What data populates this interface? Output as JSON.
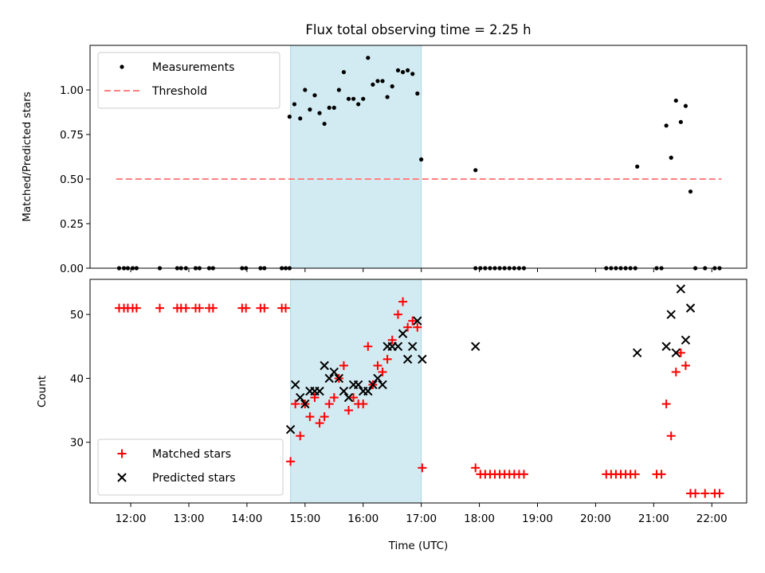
{
  "chart_data": [
    {
      "type": "scatter",
      "title": "Flux total observing time = 2.25 h",
      "xlabel": "",
      "ylabel": "Matched/Predicted stars",
      "ylim": [
        0,
        1.25
      ],
      "yticks": [
        "0.00",
        "0.25",
        "0.50",
        "0.75",
        "1.00"
      ],
      "ytick_values": [
        0,
        0.25,
        0.5,
        0.75,
        1.0
      ],
      "highlight_span": {
        "start": "14:45",
        "end": "17:00",
        "color": "#add8e6"
      },
      "legend_position": "upper-left",
      "series": [
        {
          "name": "Measurements",
          "marker": "dot",
          "color": "#000000",
          "points": [
            [
              "11:48",
              0
            ],
            [
              "11:53",
              0
            ],
            [
              "11:57",
              0
            ],
            [
              "12:02",
              0
            ],
            [
              "12:06",
              0
            ],
            [
              "12:30",
              0
            ],
            [
              "12:48",
              0
            ],
            [
              "12:52",
              0
            ],
            [
              "12:57",
              0
            ],
            [
              "13:07",
              0
            ],
            [
              "13:11",
              0
            ],
            [
              "13:21",
              0
            ],
            [
              "13:25",
              0
            ],
            [
              "13:55",
              0
            ],
            [
              "13:59",
              0
            ],
            [
              "14:14",
              0
            ],
            [
              "14:18",
              0
            ],
            [
              "14:36",
              0
            ],
            [
              "14:40",
              0
            ],
            [
              "14:44",
              0
            ],
            [
              "14:44",
              0.85
            ],
            [
              "14:49",
              0.92
            ],
            [
              "14:55",
              0.84
            ],
            [
              "15:00",
              1.0
            ],
            [
              "15:05",
              0.89
            ],
            [
              "15:10",
              0.97
            ],
            [
              "15:15",
              0.87
            ],
            [
              "15:20",
              0.81
            ],
            [
              "15:25",
              0.9
            ],
            [
              "15:30",
              0.9
            ],
            [
              "15:35",
              1.0
            ],
            [
              "15:40",
              1.1
            ],
            [
              "15:45",
              0.95
            ],
            [
              "15:50",
              0.95
            ],
            [
              "15:55",
              0.92
            ],
            [
              "16:00",
              0.95
            ],
            [
              "16:05",
              1.18
            ],
            [
              "16:10",
              1.03
            ],
            [
              "16:15",
              1.05
            ],
            [
              "16:20",
              1.05
            ],
            [
              "16:25",
              0.96
            ],
            [
              "16:30",
              1.02
            ],
            [
              "16:36",
              1.11
            ],
            [
              "16:41",
              1.1
            ],
            [
              "16:46",
              1.11
            ],
            [
              "16:51",
              1.09
            ],
            [
              "16:56",
              0.98
            ],
            [
              "17:00",
              0.61
            ],
            [
              "17:56",
              0.55
            ],
            [
              "17:56",
              0
            ],
            [
              "18:01",
              0
            ],
            [
              "18:06",
              0
            ],
            [
              "18:11",
              0
            ],
            [
              "18:16",
              0
            ],
            [
              "18:21",
              0
            ],
            [
              "18:26",
              0
            ],
            [
              "18:31",
              0
            ],
            [
              "18:36",
              0
            ],
            [
              "18:41",
              0
            ],
            [
              "18:46",
              0
            ],
            [
              "20:11",
              0
            ],
            [
              "20:16",
              0
            ],
            [
              "20:21",
              0
            ],
            [
              "20:26",
              0
            ],
            [
              "20:31",
              0
            ],
            [
              "20:36",
              0
            ],
            [
              "20:41",
              0
            ],
            [
              "20:43",
              0.57
            ],
            [
              "21:03",
              0
            ],
            [
              "21:08",
              0
            ],
            [
              "21:13",
              0.8
            ],
            [
              "21:18",
              0.62
            ],
            [
              "21:23",
              0.94
            ],
            [
              "21:28",
              0.82
            ],
            [
              "21:33",
              0.91
            ],
            [
              "21:38",
              0.43
            ],
            [
              "21:43",
              0
            ],
            [
              "21:53",
              0
            ],
            [
              "22:03",
              0
            ],
            [
              "22:08",
              0
            ]
          ]
        },
        {
          "name": "Threshold",
          "marker": "dashed-line",
          "color": "#ff8080",
          "points": [
            [
              "11:45",
              0.5
            ],
            [
              "22:10",
              0.5
            ]
          ]
        }
      ]
    },
    {
      "type": "scatter",
      "title": "",
      "xlabel": "Time (UTC)",
      "ylabel": "Count",
      "ylim": [
        20.5,
        55.5
      ],
      "yticks": [
        "30",
        "40",
        "50"
      ],
      "ytick_values": [
        30,
        40,
        50
      ],
      "xlim": [
        "11:18",
        "22:36"
      ],
      "xticks": [
        "12:00",
        "13:00",
        "14:00",
        "15:00",
        "16:00",
        "17:00",
        "18:00",
        "19:00",
        "20:00",
        "21:00",
        "22:00"
      ],
      "highlight_span": {
        "start": "14:45",
        "end": "17:00",
        "color": "#add8e6"
      },
      "legend_position": "lower-left",
      "series": [
        {
          "name": "Matched stars",
          "marker": "plus",
          "color": "#ff0000",
          "points": [
            [
              "11:48",
              51
            ],
            [
              "11:53",
              51
            ],
            [
              "11:57",
              51
            ],
            [
              "12:02",
              51
            ],
            [
              "12:06",
              51
            ],
            [
              "12:30",
              51
            ],
            [
              "12:48",
              51
            ],
            [
              "12:52",
              51
            ],
            [
              "12:57",
              51
            ],
            [
              "13:07",
              51
            ],
            [
              "13:11",
              51
            ],
            [
              "13:21",
              51
            ],
            [
              "13:25",
              51
            ],
            [
              "13:55",
              51
            ],
            [
              "13:59",
              51
            ],
            [
              "14:14",
              51
            ],
            [
              "14:18",
              51
            ],
            [
              "14:36",
              51
            ],
            [
              "14:40",
              51
            ],
            [
              "14:45",
              27
            ],
            [
              "14:50",
              36
            ],
            [
              "14:55",
              31
            ],
            [
              "15:00",
              36
            ],
            [
              "15:05",
              34
            ],
            [
              "15:10",
              37
            ],
            [
              "15:15",
              33
            ],
            [
              "15:20",
              34
            ],
            [
              "15:25",
              36
            ],
            [
              "15:30",
              37
            ],
            [
              "15:35",
              40
            ],
            [
              "15:40",
              42
            ],
            [
              "15:45",
              35
            ],
            [
              "15:50",
              37
            ],
            [
              "15:55",
              36
            ],
            [
              "16:00",
              36
            ],
            [
              "16:05",
              45
            ],
            [
              "16:10",
              39
            ],
            [
              "16:15",
              42
            ],
            [
              "16:20",
              41
            ],
            [
              "16:25",
              43
            ],
            [
              "16:30",
              46
            ],
            [
              "16:36",
              50
            ],
            [
              "16:41",
              52
            ],
            [
              "16:46",
              48
            ],
            [
              "16:51",
              49
            ],
            [
              "16:56",
              48
            ],
            [
              "17:01",
              26
            ],
            [
              "17:56",
              26
            ],
            [
              "18:01",
              25
            ],
            [
              "18:06",
              25
            ],
            [
              "18:11",
              25
            ],
            [
              "18:16",
              25
            ],
            [
              "18:21",
              25
            ],
            [
              "18:26",
              25
            ],
            [
              "18:31",
              25
            ],
            [
              "18:36",
              25
            ],
            [
              "18:41",
              25
            ],
            [
              "18:46",
              25
            ],
            [
              "20:11",
              25
            ],
            [
              "20:16",
              25
            ],
            [
              "20:21",
              25
            ],
            [
              "20:26",
              25
            ],
            [
              "20:31",
              25
            ],
            [
              "20:36",
              25
            ],
            [
              "20:41",
              25
            ],
            [
              "21:03",
              25
            ],
            [
              "21:08",
              25
            ],
            [
              "21:13",
              36
            ],
            [
              "21:18",
              31
            ],
            [
              "21:23",
              41
            ],
            [
              "21:28",
              44
            ],
            [
              "21:33",
              42
            ],
            [
              "21:38",
              22
            ],
            [
              "21:43",
              22
            ],
            [
              "21:53",
              22
            ],
            [
              "22:03",
              22
            ],
            [
              "22:08",
              22
            ]
          ]
        },
        {
          "name": "Predicted stars",
          "marker": "x",
          "color": "#000000",
          "points": [
            [
              "14:45",
              32
            ],
            [
              "14:50",
              39
            ],
            [
              "14:55",
              37
            ],
            [
              "15:00",
              36
            ],
            [
              "15:05",
              38
            ],
            [
              "15:10",
              38
            ],
            [
              "15:15",
              38
            ],
            [
              "15:20",
              42
            ],
            [
              "15:25",
              40
            ],
            [
              "15:30",
              41
            ],
            [
              "15:35",
              40
            ],
            [
              "15:40",
              38
            ],
            [
              "15:45",
              37
            ],
            [
              "15:50",
              39
            ],
            [
              "15:55",
              39
            ],
            [
              "16:00",
              38
            ],
            [
              "16:05",
              38
            ],
            [
              "16:10",
              39
            ],
            [
              "16:15",
              40
            ],
            [
              "16:20",
              39
            ],
            [
              "16:25",
              45
            ],
            [
              "16:30",
              45
            ],
            [
              "16:36",
              45
            ],
            [
              "16:41",
              47
            ],
            [
              "16:46",
              43
            ],
            [
              "16:51",
              45
            ],
            [
              "16:56",
              49
            ],
            [
              "17:01",
              43
            ],
            [
              "17:56",
              45
            ],
            [
              "20:43",
              44
            ],
            [
              "21:13",
              45
            ],
            [
              "21:18",
              50
            ],
            [
              "21:23",
              44
            ],
            [
              "21:28",
              54
            ],
            [
              "21:33",
              46
            ],
            [
              "21:38",
              51
            ]
          ]
        }
      ]
    }
  ]
}
